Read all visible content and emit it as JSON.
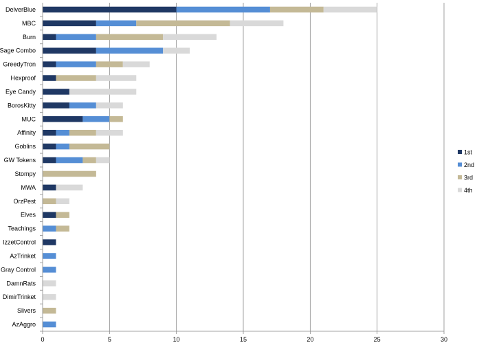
{
  "chart_data": {
    "type": "bar",
    "orientation": "horizontal",
    "stacked": true,
    "categories": [
      "DelverBlue",
      "MBC",
      "Burn",
      "Sage Combo",
      "GreedyTron",
      "Hexproof",
      "Eye Candy",
      "BorosKitty",
      "MUC",
      "Affinity",
      "Goblins",
      "GW Tokens",
      "Stompy",
      "MWA",
      "OrzPest",
      "Elves",
      "Teachings",
      "IzzetControl",
      "AzTrinket",
      "Gray Control",
      "DamnRats",
      "DimirTrinket",
      "Slivers",
      "AzAggro"
    ],
    "series": [
      {
        "name": "1st",
        "color": "#1f3864",
        "values": [
          10,
          4,
          1,
          4,
          1,
          1,
          2,
          2,
          3,
          1,
          1,
          1,
          0,
          1,
          0,
          1,
          0,
          1,
          0,
          0,
          0,
          0,
          0,
          0
        ]
      },
      {
        "name": "2nd",
        "color": "#558ed5",
        "values": [
          7,
          3,
          3,
          5,
          3,
          0,
          0,
          2,
          2,
          1,
          1,
          2,
          0,
          0,
          0,
          0,
          1,
          0,
          1,
          1,
          0,
          0,
          0,
          1
        ]
      },
      {
        "name": "3rd",
        "color": "#c4b996",
        "values": [
          4,
          7,
          5,
          0,
          2,
          3,
          0,
          0,
          1,
          2,
          3,
          1,
          4,
          0,
          1,
          1,
          1,
          0,
          0,
          0,
          0,
          0,
          1,
          0
        ]
      },
      {
        "name": "4th",
        "color": "#d9d9d9",
        "values": [
          4,
          4,
          4,
          2,
          2,
          3,
          5,
          2,
          0,
          2,
          0,
          1,
          0,
          2,
          1,
          0,
          0,
          0,
          0,
          0,
          1,
          1,
          0,
          0
        ]
      }
    ],
    "xlim": [
      0,
      30
    ],
    "xticks": [
      "0",
      "5",
      "10",
      "15",
      "20",
      "25",
      "30"
    ],
    "grid": "vertical",
    "legend_position": "right",
    "title": "",
    "xlabel": "",
    "ylabel": ""
  }
}
